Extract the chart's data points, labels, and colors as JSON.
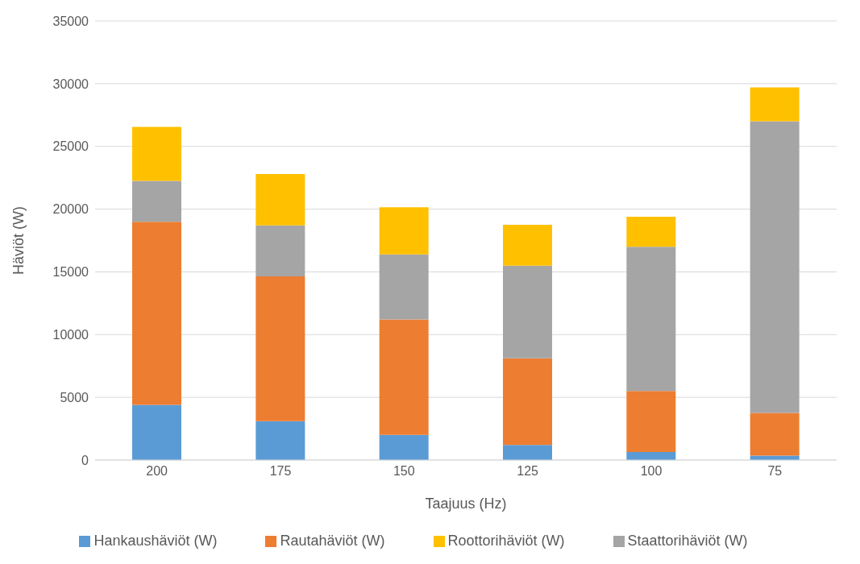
{
  "chart_data": {
    "type": "bar",
    "stacked": true,
    "xlabel": "Taajuus (Hz)",
    "ylabel": "Häviöt (W)",
    "categories": [
      "200",
      "175",
      "150",
      "125",
      "100",
      "75"
    ],
    "series": [
      {
        "name": "Hankaushäviöt (W)",
        "color": "#5b9bd5",
        "values": [
          4400,
          3100,
          2000,
          1200,
          650,
          350
        ]
      },
      {
        "name": "Rautahäviöt (W)",
        "color": "#ed7d31",
        "values": [
          14600,
          11550,
          9200,
          6900,
          4850,
          3400
        ]
      },
      {
        "name": "Staattorihäviöt (W)",
        "color": "#a5a5a5",
        "values": [
          3250,
          4050,
          5200,
          7400,
          11500,
          23250
        ]
      },
      {
        "name": "Roottorihäviöt (W)",
        "color": "#ffc000",
        "values": [
          4300,
          4100,
          3750,
          3250,
          2400,
          2700
        ]
      }
    ],
    "ylim": [
      0,
      35000
    ],
    "yticks": [
      0,
      5000,
      10000,
      15000,
      20000,
      25000,
      30000,
      35000
    ],
    "grid": "y",
    "legend": "bottom"
  }
}
